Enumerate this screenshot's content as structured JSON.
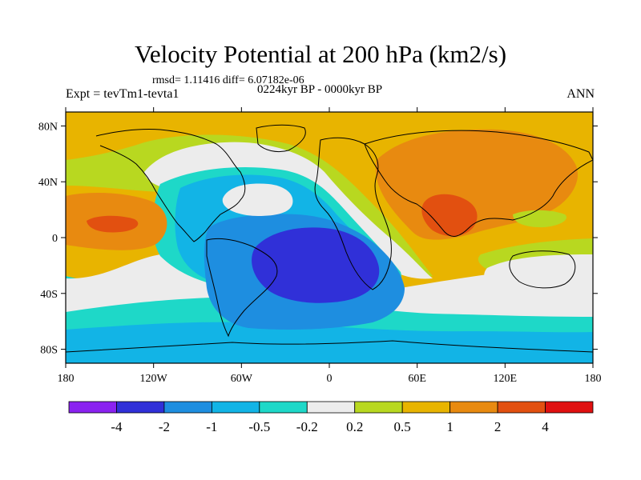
{
  "title": "Velocity Potential at 200 hPa (km2/s)",
  "stats": "rmsd= 1.11416  diff= 6.07182e-06",
  "experiment": "Expt = tevTm1-tevta1",
  "period": "0224kyr BP - 0000kyr BP",
  "season": "ANN",
  "axes": {
    "lon_ticks": [
      {
        "value": -180,
        "label": "180"
      },
      {
        "value": -120,
        "label": "120W"
      },
      {
        "value": -60,
        "label": "60W"
      },
      {
        "value": 0,
        "label": "0"
      },
      {
        "value": 60,
        "label": "60E"
      },
      {
        "value": 120,
        "label": "120E"
      },
      {
        "value": 180,
        "label": "180"
      }
    ],
    "lat_ticks": [
      {
        "value": 80,
        "label": "80N"
      },
      {
        "value": 40,
        "label": "40N"
      },
      {
        "value": 0,
        "label": "0"
      },
      {
        "value": -40,
        "label": "40S"
      },
      {
        "value": -80,
        "label": "80S"
      }
    ],
    "lon_range": [
      -180,
      180
    ],
    "lat_range": [
      -90,
      90
    ]
  },
  "colorbar": {
    "colors": [
      "#8a22f0",
      "#3030d8",
      "#1e8ee0",
      "#12b4e6",
      "#1ed8c8",
      "#ececec",
      "#b8d820",
      "#e8b400",
      "#e88a10",
      "#e25010",
      "#e01010"
    ],
    "labels": [
      "-4",
      "-2",
      "-1",
      "-0.5",
      "-0.2",
      "0.2",
      "0.5",
      "1",
      "2",
      "4"
    ]
  },
  "colors": {
    "background_field": "#e8b400",
    "coastline": "#000000"
  }
}
